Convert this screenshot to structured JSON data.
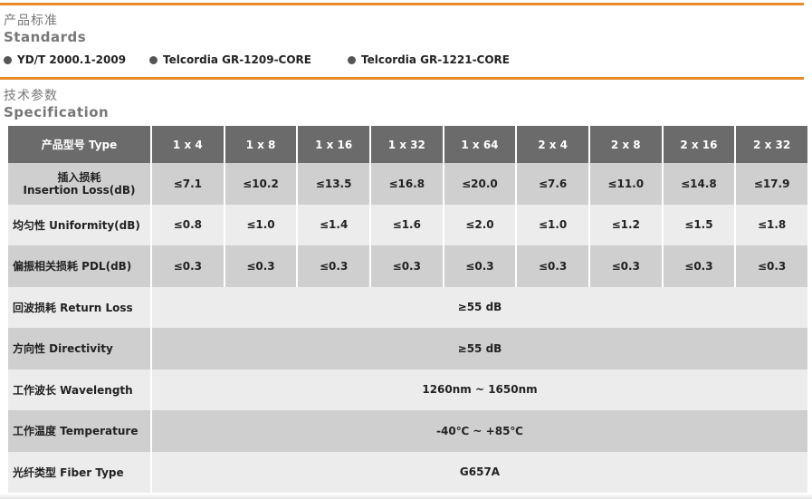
{
  "standards": {
    "title_cn": "产品标准",
    "title_en": "Standards",
    "items": [
      "YD/T 2000.1-2009",
      "Telcordia GR-1209-CORE",
      "Telcordia GR-1221-CORE"
    ]
  },
  "specification": {
    "title_cn": "技术参数",
    "title_en": "Specification",
    "header_label": "产品型号 Type",
    "types": [
      "1 x 4",
      "1 x 8",
      "1 x 16",
      "1 x 32",
      "1 x 64",
      "2 x 4",
      "2 x 8",
      "2 x 16",
      "2 x 32"
    ],
    "rows": [
      {
        "label_cn": "插入损耗",
        "label_en": "Insertion Loss(dB)",
        "values": [
          "≤7.1",
          "≤10.2",
          "≤13.5",
          "≤16.8",
          "≤20.0",
          "≤7.6",
          "≤11.0",
          "≤14.8",
          "≤17.9"
        ]
      },
      {
        "label": "均匀性  Uniformity(dB)",
        "values": [
          "≤0.8",
          "≤1.0",
          "≤1.4",
          "≤1.6",
          "≤2.0",
          "≤1.0",
          "≤1.2",
          "≤1.5",
          "≤1.8"
        ]
      },
      {
        "label": "偏振相关损耗  PDL(dB)",
        "values": [
          "≤0.3",
          "≤0.3",
          "≤0.3",
          "≤0.3",
          "≤0.3",
          "≤0.3",
          "≤0.3",
          "≤0.3",
          "≤0.3"
        ]
      },
      {
        "label": "回波损耗  Return Loss",
        "value": "≥55  dB"
      },
      {
        "label": "方向性    Directivity",
        "value": "≥55  dB"
      },
      {
        "label": "工作波长  Wavelength",
        "value": "1260nm ~ 1650nm"
      },
      {
        "label": "工作温度  Temperature",
        "value": "-40℃ ~ +85℃"
      },
      {
        "label": "光纤类型  Fiber Type",
        "value": "G657A"
      }
    ]
  },
  "colors": {
    "accent": "#e8892a",
    "header_bg": "#6b6b6b",
    "row_dark": "#cfcfcf",
    "row_light": "#ececec"
  }
}
